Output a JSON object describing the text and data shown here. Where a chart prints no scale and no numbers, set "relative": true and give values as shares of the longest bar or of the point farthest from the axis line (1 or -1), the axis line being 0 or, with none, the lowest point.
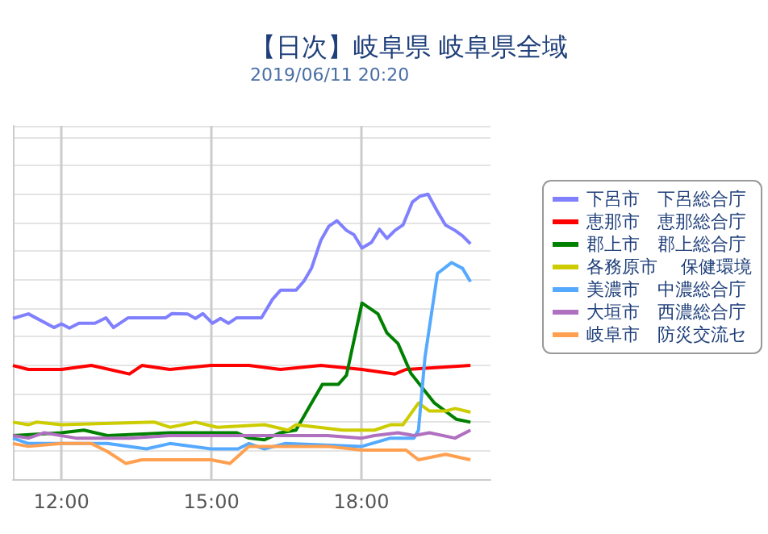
{
  "chart_data": {
    "type": "line",
    "title": "【日次】岐阜県 岐阜県全域",
    "subtitle": "2019/06/11 20:20",
    "relative": true,
    "grid": true,
    "legend": "right",
    "tick_labels": "x",
    "marker": "none",
    "line_style": "solid",
    "xlim": [
      11.03,
      20.58
    ],
    "xticks": [
      {
        "value": 12,
        "label": "12:00"
      },
      {
        "value": 15,
        "label": "15:00"
      },
      {
        "value": 18,
        "label": "18:00"
      }
    ],
    "series": [
      {
        "name": "下呂市　下呂総合庁",
        "color": "#8080ff",
        "x": [
          11.03,
          11.34,
          11.85,
          12.0,
          12.16,
          12.35,
          12.67,
          12.89,
          13.04,
          13.33,
          14.08,
          14.21,
          14.52,
          14.68,
          14.83,
          15.02,
          15.18,
          15.34,
          15.5,
          16.0,
          16.22,
          16.38,
          16.69,
          16.85,
          17.0,
          17.19,
          17.35,
          17.51,
          17.7,
          17.85,
          18.01,
          18.2,
          18.36,
          18.51,
          18.67,
          18.83,
          19.02,
          19.17,
          19.33,
          19.52,
          19.68,
          19.87,
          20.02,
          20.18
        ],
        "values": [
          0.564,
          0.58,
          0.532,
          0.545,
          0.53,
          0.547,
          0.547,
          0.566,
          0.532,
          0.566,
          0.566,
          0.581,
          0.58,
          0.564,
          0.581,
          0.547,
          0.564,
          0.547,
          0.566,
          0.566,
          0.631,
          0.663,
          0.663,
          0.695,
          0.74,
          0.839,
          0.888,
          0.907,
          0.873,
          0.858,
          0.811,
          0.831,
          0.877,
          0.845,
          0.873,
          0.892,
          0.973,
          0.993,
          1.0,
          0.939,
          0.892,
          0.873,
          0.854,
          0.826
        ]
      },
      {
        "name": "恵那市　恵那総合庁",
        "color": "#ff0000",
        "x": [
          11.03,
          11.34,
          12.0,
          12.6,
          13.36,
          13.61,
          14.17,
          14.99,
          15.75,
          16.38,
          17.19,
          18.01,
          18.67,
          18.89,
          20.18
        ],
        "values": [
          0.399,
          0.385,
          0.385,
          0.399,
          0.369,
          0.399,
          0.385,
          0.399,
          0.399,
          0.385,
          0.399,
          0.385,
          0.369,
          0.385,
          0.399
        ]
      },
      {
        "name": "郡上市　郡上総合庁",
        "color": "#008000",
        "x": [
          11.03,
          12.0,
          12.45,
          12.92,
          14.17,
          15.5,
          15.75,
          16.06,
          16.38,
          16.69,
          17.0,
          17.22,
          17.54,
          17.7,
          18.01,
          18.33,
          18.51,
          18.73,
          18.99,
          19.46,
          19.9,
          20.18
        ],
        "values": [
          0.153,
          0.163,
          0.172,
          0.153,
          0.163,
          0.163,
          0.144,
          0.138,
          0.163,
          0.172,
          0.267,
          0.333,
          0.333,
          0.365,
          0.618,
          0.58,
          0.513,
          0.476,
          0.371,
          0.267,
          0.21,
          0.2
        ]
      },
      {
        "name": "各務原市　 保健環境",
        "color": "#cccc00",
        "x": [
          11.03,
          11.34,
          11.5,
          12.0,
          13.86,
          14.17,
          14.68,
          15.12,
          16.06,
          16.53,
          16.69,
          17.63,
          18.26,
          18.58,
          18.83,
          19.14,
          19.36,
          19.68,
          19.87,
          20.18
        ],
        "values": [
          0.2,
          0.191,
          0.2,
          0.191,
          0.2,
          0.182,
          0.2,
          0.182,
          0.191,
          0.172,
          0.191,
          0.172,
          0.172,
          0.191,
          0.191,
          0.267,
          0.239,
          0.239,
          0.248,
          0.235
        ]
      },
      {
        "name": "美濃市　中濃総合庁",
        "color": "#55aaff",
        "x": [
          11.03,
          11.34,
          12.0,
          12.92,
          13.7,
          14.17,
          14.99,
          15.53,
          15.75,
          16.06,
          16.47,
          18.01,
          18.58,
          19.05,
          19.14,
          19.27,
          19.52,
          19.8,
          20.02,
          20.18
        ],
        "values": [
          0.144,
          0.125,
          0.125,
          0.125,
          0.106,
          0.125,
          0.106,
          0.106,
          0.125,
          0.106,
          0.125,
          0.115,
          0.144,
          0.144,
          0.172,
          0.428,
          0.722,
          0.76,
          0.74,
          0.693
        ]
      },
      {
        "name": "大垣市　西濃総合庁",
        "color": "#b070c0",
        "x": [
          11.03,
          11.34,
          11.66,
          12.29,
          13.36,
          14.17,
          16.06,
          17.32,
          18.01,
          18.26,
          18.73,
          19.05,
          19.36,
          19.87,
          20.18
        ],
        "values": [
          0.153,
          0.144,
          0.163,
          0.144,
          0.144,
          0.153,
          0.153,
          0.153,
          0.144,
          0.153,
          0.163,
          0.153,
          0.163,
          0.144,
          0.172
        ]
      },
      {
        "name": "岐阜市　防災交流セ",
        "color": "#ffa050",
        "x": [
          11.03,
          11.34,
          12.0,
          12.6,
          12.92,
          13.29,
          13.61,
          14.99,
          15.37,
          15.75,
          16.38,
          17.32,
          18.01,
          18.89,
          19.14,
          19.68,
          20.18
        ],
        "values": [
          0.125,
          0.115,
          0.125,
          0.125,
          0.097,
          0.055,
          0.068,
          0.068,
          0.055,
          0.115,
          0.115,
          0.115,
          0.102,
          0.102,
          0.068,
          0.087,
          0.068
        ]
      }
    ]
  }
}
